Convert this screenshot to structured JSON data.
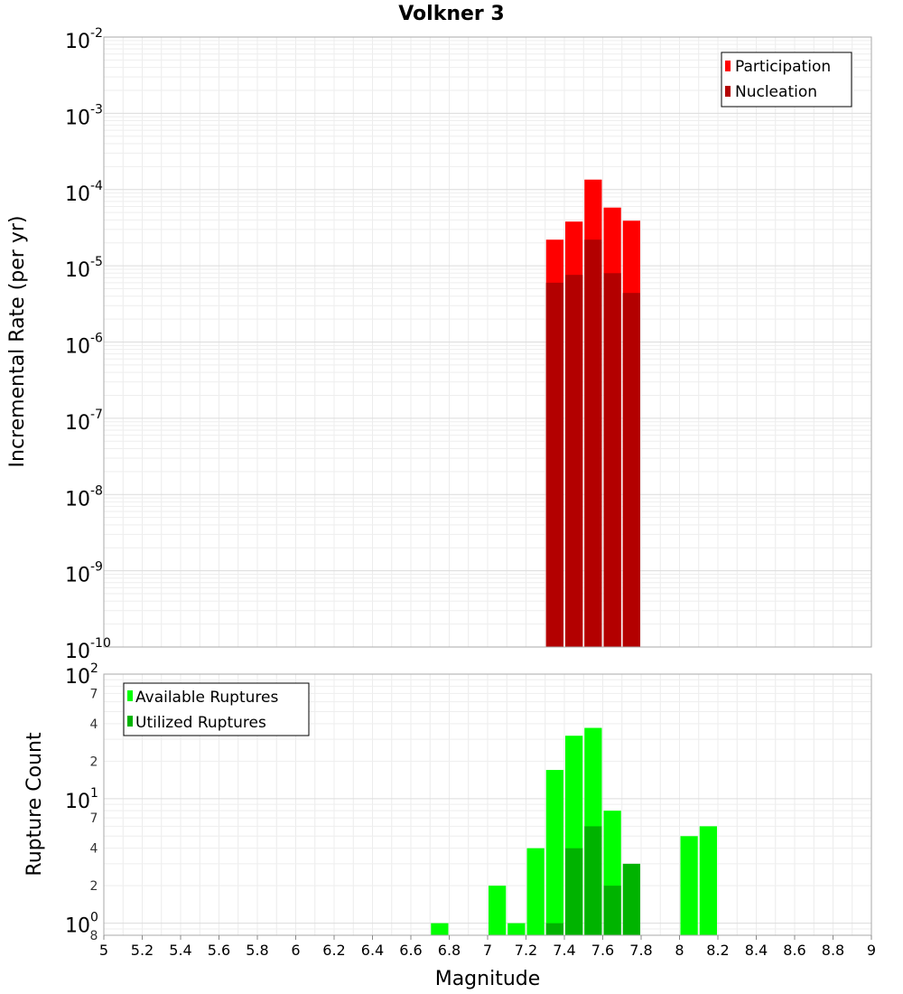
{
  "chart_data": [
    {
      "type": "bar",
      "title": "Volkner 3",
      "xlabel": "Magnitude",
      "ylabel": "Incremental Rate (per yr)",
      "xlim": [
        5,
        9
      ],
      "ylim": [
        1e-10,
        0.01
      ],
      "yscale": "log",
      "bin_width": 0.1,
      "y_ticks": [
        {
          "base": "10",
          "exp": "-2"
        },
        {
          "base": "10",
          "exp": "-3"
        },
        {
          "base": "10",
          "exp": "-4"
        },
        {
          "base": "10",
          "exp": "-5"
        },
        {
          "base": "10",
          "exp": "-6"
        },
        {
          "base": "10",
          "exp": "-7"
        },
        {
          "base": "10",
          "exp": "-8"
        },
        {
          "base": "10",
          "exp": "-9"
        },
        {
          "base": "10",
          "exp": "-10"
        }
      ],
      "legend_position": "top-right",
      "series": [
        {
          "name": "Participation",
          "color": "#ff0000",
          "x": [
            7.35,
            7.45,
            7.55,
            7.65,
            7.75
          ],
          "values": [
            2.2e-05,
            3.8e-05,
            0.000135,
            5.8e-05,
            3.9e-05
          ]
        },
        {
          "name": "Nucleation",
          "color": "#b30000",
          "x": [
            7.35,
            7.45,
            7.55,
            7.65,
            7.75
          ],
          "values": [
            6e-06,
            7.6e-06,
            2.2e-05,
            8e-06,
            4.4e-06
          ]
        }
      ]
    },
    {
      "type": "bar",
      "title": "",
      "xlabel": "Magnitude",
      "ylabel": "Rupture Count",
      "xlim": [
        5,
        9
      ],
      "ylim": [
        0.8,
        100
      ],
      "yscale": "log",
      "bin_width": 0.1,
      "x_ticks": [
        "5",
        "5.2",
        "5.4",
        "5.6",
        "5.8",
        "6",
        "6.2",
        "6.4",
        "6.6",
        "6.8",
        "7",
        "7.2",
        "7.4",
        "7.6",
        "7.8",
        "8",
        "8.2",
        "8.4",
        "8.6",
        "8.8",
        "9"
      ],
      "y_major_ticks": [
        {
          "value": 100,
          "base": "10",
          "exp": "2"
        },
        {
          "value": 10,
          "base": "10",
          "exp": "1"
        },
        {
          "value": 1,
          "base": "10",
          "exp": "0"
        }
      ],
      "y_minor_ticks": [
        {
          "value": 70,
          "label": "7"
        },
        {
          "value": 40,
          "label": "4"
        },
        {
          "value": 20,
          "label": "2"
        },
        {
          "value": 7,
          "label": "7"
        },
        {
          "value": 4,
          "label": "4"
        },
        {
          "value": 2,
          "label": "2"
        },
        {
          "value": 0.8,
          "label": "8"
        }
      ],
      "legend_position": "top-left",
      "series": [
        {
          "name": "Available Ruptures",
          "color": "#00ff00",
          "x": [
            6.75,
            7.05,
            7.15,
            7.25,
            7.35,
            7.45,
            7.55,
            7.65,
            8.05,
            8.15
          ],
          "values": [
            1,
            2,
            1,
            4,
            17,
            32,
            37,
            8,
            5,
            6
          ]
        },
        {
          "name": "Utilized Ruptures",
          "color": "#00b300",
          "x": [
            7.35,
            7.45,
            7.55,
            7.65,
            7.75
          ],
          "values": [
            1,
            4,
            6,
            2,
            3
          ]
        }
      ]
    }
  ]
}
